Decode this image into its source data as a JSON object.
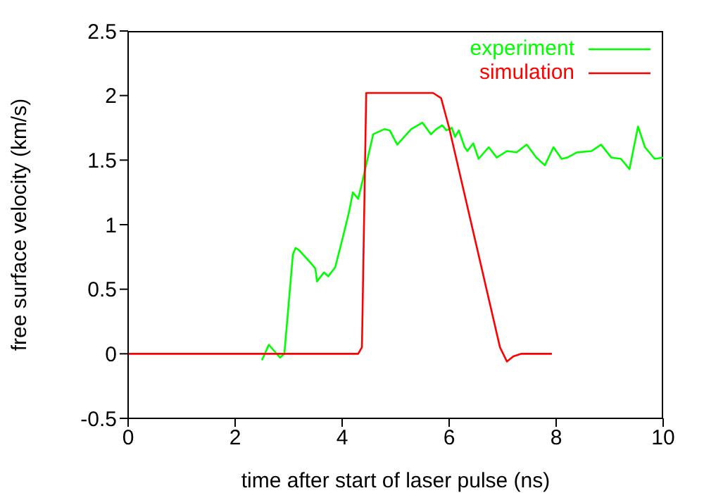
{
  "chart_data": {
    "type": "line",
    "xlabel": "time after start of laser pulse (ns)",
    "ylabel": "free surface velocity (km/s)",
    "xlim": [
      0,
      10
    ],
    "ylim": [
      -0.5,
      2.5
    ],
    "xticks": [
      0,
      2,
      4,
      6,
      8,
      10
    ],
    "yticks": [
      -0.5,
      0,
      0.5,
      1,
      1.5,
      2,
      2.5
    ],
    "legend": "top right",
    "marker": "none",
    "line_style": "solid",
    "series": [
      {
        "name": "experiment",
        "color": "#00ff00",
        "x": [
          2.5,
          2.63,
          2.84,
          2.92,
          3.08,
          3.13,
          3.2,
          3.42,
          3.5,
          3.53,
          3.66,
          3.74,
          3.87,
          4.0,
          4.13,
          4.2,
          4.3,
          4.37,
          4.58,
          4.79,
          4.89,
          5.03,
          5.16,
          5.29,
          5.5,
          5.66,
          5.76,
          5.87,
          5.95,
          6.05,
          6.11,
          6.18,
          6.29,
          6.34,
          6.45,
          6.55,
          6.74,
          6.89,
          7.08,
          7.26,
          7.45,
          7.63,
          7.79,
          7.95,
          8.1,
          8.21,
          8.39,
          8.66,
          8.84,
          9.03,
          9.21,
          9.37,
          9.53,
          9.66,
          9.84,
          10.0
        ],
        "values": [
          -0.05,
          0.07,
          -0.03,
          0,
          0.77,
          0.82,
          0.8,
          0.7,
          0.66,
          0.56,
          0.63,
          0.6,
          0.67,
          0.88,
          1.1,
          1.25,
          1.2,
          1.32,
          1.7,
          1.74,
          1.73,
          1.62,
          1.68,
          1.74,
          1.79,
          1.7,
          1.74,
          1.77,
          1.73,
          1.75,
          1.68,
          1.73,
          1.6,
          1.57,
          1.63,
          1.51,
          1.6,
          1.52,
          1.57,
          1.56,
          1.62,
          1.52,
          1.46,
          1.6,
          1.51,
          1.52,
          1.56,
          1.57,
          1.62,
          1.52,
          1.51,
          1.43,
          1.76,
          1.6,
          1.51,
          1.52
        ]
      },
      {
        "name": "simulation",
        "color": "#ff0000",
        "x": [
          0,
          4.3,
          4.37,
          4.45,
          5.7,
          5.85,
          6.0,
          6.95,
          7.08,
          7.2,
          7.35,
          7.92
        ],
        "values": [
          0,
          0,
          0.05,
          2.02,
          2.02,
          1.98,
          1.75,
          0.05,
          -0.06,
          -0.02,
          0,
          0
        ]
      }
    ]
  }
}
